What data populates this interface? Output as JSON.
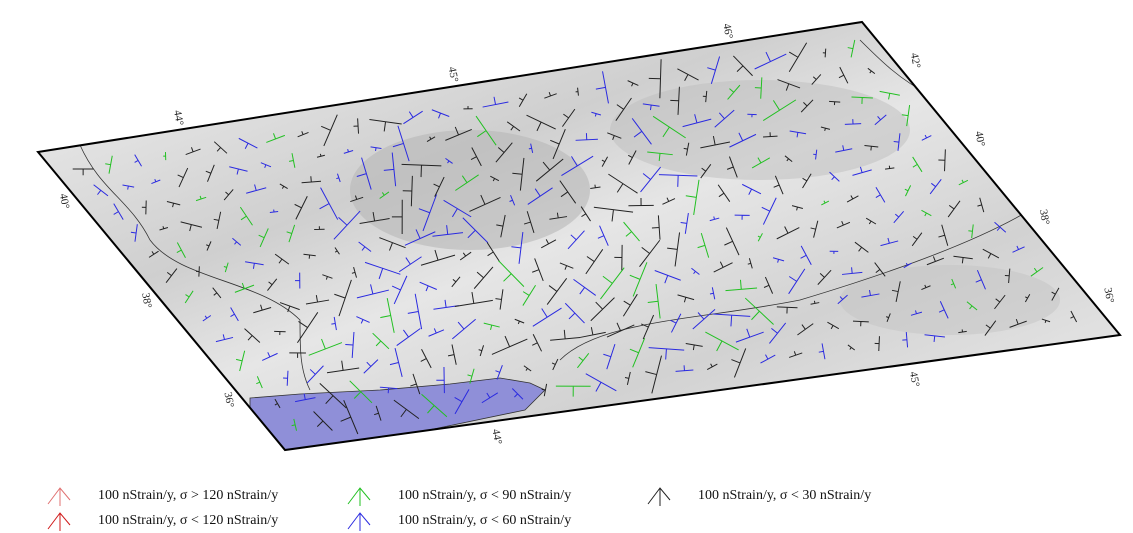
{
  "map": {
    "top_labels": [
      "44°",
      "45°",
      "46°"
    ],
    "bottom_labels": [
      "44°",
      "45°"
    ],
    "left_labels": [
      "40°",
      "38°",
      "36°"
    ],
    "right_labels": [
      "42°",
      "40°",
      "38°",
      "36°"
    ],
    "legend": [
      {
        "label": "100 nStrain/y, σ > 120 nStrain/y",
        "color": "#e07070"
      },
      {
        "label": "100 nStrain/y, σ < 120 nStrain/y",
        "color": "#d01818"
      },
      {
        "label": "100 nStrain/y, σ < 90 nStrain/y",
        "color": "#22c022"
      },
      {
        "label": "100 nStrain/y, σ < 60 nStrain/y",
        "color": "#2a2ae0"
      },
      {
        "label": "100 nStrain/y, σ < 30 nStrain/y",
        "color": "#222222"
      }
    ]
  }
}
